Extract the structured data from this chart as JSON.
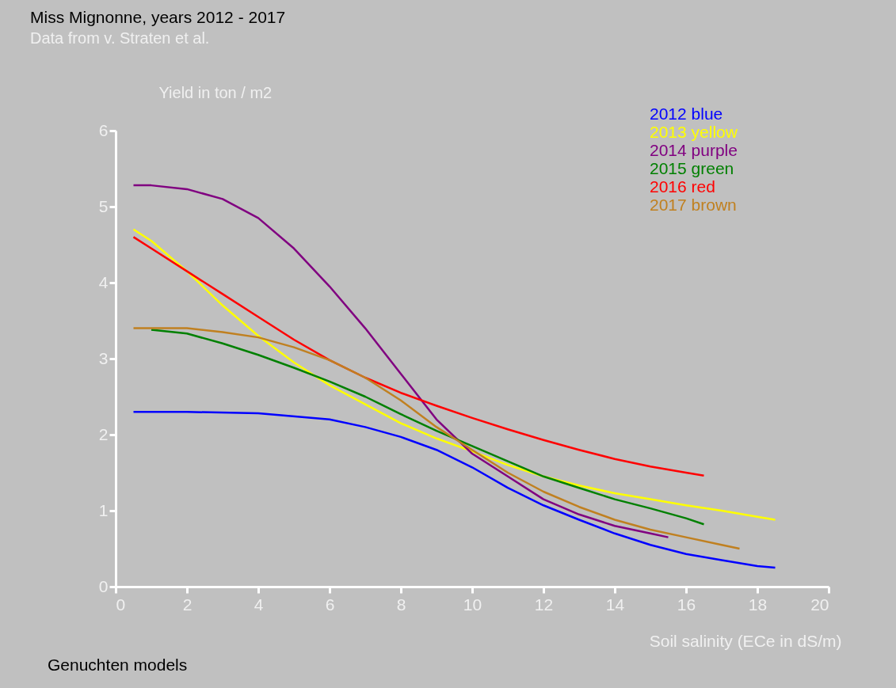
{
  "chart_data": {
    "type": "line",
    "title": "Miss Mignonne, years 2012 - 2017",
    "subtitle": "Data from v. Straten et al.",
    "ylabel": "Yield in ton / m2",
    "xlabel": "Soil salinity (ECe in dS/m)",
    "annotations": [
      "Genuchten models"
    ],
    "xlim": [
      0,
      20
    ],
    "xticks": [
      0,
      2,
      4,
      6,
      8,
      10,
      12,
      14,
      16,
      18,
      20
    ],
    "ylim": [
      0,
      6
    ],
    "yticks": [
      0,
      1,
      2,
      3,
      4,
      5,
      6
    ],
    "grid": false,
    "legend": "top right",
    "marker": "none",
    "line_style": "solid",
    "series": [
      {
        "name": "2012 blue",
        "color": "#0000ff",
        "x": [
          0.5,
          2,
          4,
          6,
          7,
          8,
          9,
          10,
          11,
          12,
          13,
          14,
          15,
          16,
          17,
          18,
          18.5
        ],
        "values": [
          2.3,
          2.3,
          2.28,
          2.2,
          2.1,
          1.97,
          1.8,
          1.57,
          1.3,
          1.07,
          0.88,
          0.7,
          0.55,
          0.43,
          0.35,
          0.27,
          0.25
        ]
      },
      {
        "name": "2013 yellow",
        "color": "#ffff00",
        "x": [
          0.5,
          1,
          2,
          3,
          4,
          5,
          6,
          7,
          8,
          9,
          10,
          11,
          12,
          13,
          14,
          15,
          16,
          17,
          18,
          18.5
        ],
        "values": [
          4.7,
          4.55,
          4.15,
          3.7,
          3.3,
          2.95,
          2.65,
          2.4,
          2.15,
          1.95,
          1.78,
          1.6,
          1.45,
          1.33,
          1.23,
          1.15,
          1.07,
          1.0,
          0.92,
          0.88
        ]
      },
      {
        "name": "2014 purple",
        "color": "#800080",
        "x": [
          0.5,
          1,
          2,
          3,
          4,
          5,
          6,
          7,
          8,
          9,
          10,
          11,
          12,
          13,
          14,
          15,
          15.5
        ],
        "values": [
          5.28,
          5.28,
          5.23,
          5.1,
          4.85,
          4.45,
          3.95,
          3.4,
          2.8,
          2.2,
          1.75,
          1.45,
          1.15,
          0.95,
          0.8,
          0.7,
          0.65
        ]
      },
      {
        "name": "2015 green",
        "color": "#008000",
        "x": [
          1,
          2,
          3,
          4,
          5,
          6,
          7,
          8,
          9,
          10,
          11,
          12,
          13,
          14,
          15,
          16,
          16.5
        ],
        "values": [
          3.38,
          3.33,
          3.2,
          3.05,
          2.88,
          2.7,
          2.5,
          2.27,
          2.05,
          1.85,
          1.65,
          1.45,
          1.3,
          1.15,
          1.03,
          0.9,
          0.82
        ]
      },
      {
        "name": "2016 red",
        "color": "#ff0000",
        "x": [
          0.5,
          1,
          2,
          3,
          4,
          5,
          6,
          7,
          8,
          9,
          10,
          11,
          12,
          13,
          14,
          15,
          16,
          16.5
        ],
        "values": [
          4.6,
          4.45,
          4.15,
          3.85,
          3.55,
          3.25,
          2.98,
          2.75,
          2.55,
          2.38,
          2.22,
          2.07,
          1.93,
          1.8,
          1.68,
          1.58,
          1.5,
          1.46
        ]
      },
      {
        "name": "2017 brown",
        "color": "#c08020",
        "x": [
          0.5,
          1,
          2,
          3,
          4,
          5,
          6,
          7,
          8,
          9,
          10,
          11,
          12,
          13,
          14,
          15,
          16,
          17,
          17.5
        ],
        "values": [
          3.4,
          3.4,
          3.4,
          3.35,
          3.28,
          3.15,
          2.98,
          2.75,
          2.45,
          2.1,
          1.8,
          1.5,
          1.25,
          1.05,
          0.88,
          0.75,
          0.65,
          0.55,
          0.5
        ]
      }
    ]
  }
}
